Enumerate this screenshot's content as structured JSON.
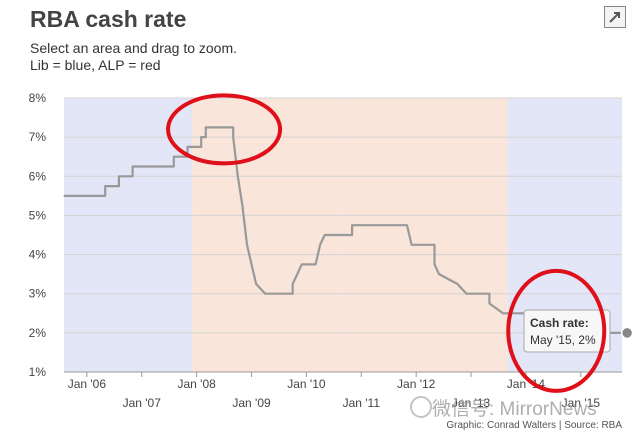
{
  "header": {
    "title": "RBA cash rate",
    "subtitle1": "Select an area and drag to zoom.",
    "subtitle2": "Lib = blue, ALP = red"
  },
  "footer": {
    "credit": "Graphic: Conrad Walters | Source: RBA"
  },
  "watermark": {
    "text": "微信号: MirrorNews"
  },
  "colors": {
    "lib_band": "#e3e6f6",
    "alp_band": "#f9e5da",
    "line": "#999999",
    "highlight_circle": "#e0101a",
    "tooltip_border": "#aaaaaa"
  },
  "tooltip": {
    "label": "Cash rate:",
    "value": "May '15, 2%"
  },
  "chart_data": {
    "type": "line",
    "title": "RBA cash rate",
    "x_range": [
      "2005-08",
      "2015-10"
    ],
    "ylim": [
      1,
      8
    ],
    "yticks": [
      "1%",
      "2%",
      "3%",
      "4%",
      "5%",
      "6%",
      "7%",
      "8%"
    ],
    "xticks": [
      {
        "date": "2006-01",
        "label": "Jan '06"
      },
      {
        "date": "2007-01",
        "label": "Jan '07"
      },
      {
        "date": "2008-01",
        "label": "Jan '08"
      },
      {
        "date": "2009-01",
        "label": "Jan '09"
      },
      {
        "date": "2010-01",
        "label": "Jan '10"
      },
      {
        "date": "2011-01",
        "label": "Jan '11"
      },
      {
        "date": "2012-01",
        "label": "Jan '12"
      },
      {
        "date": "2013-01",
        "label": "Jan '13"
      },
      {
        "date": "2014-01",
        "label": "Jan '14"
      },
      {
        "date": "2015-01",
        "label": "Jan '15"
      }
    ],
    "grid": true,
    "bands": [
      {
        "party": "Lib",
        "start": "2005-08",
        "end": "2007-12"
      },
      {
        "party": "ALP",
        "start": "2007-12",
        "end": "2010-08"
      },
      {
        "party": "ALP",
        "start": "2010-08",
        "end": "2013-09"
      },
      {
        "party": "Lib",
        "start": "2013-09",
        "end": "2015-10"
      }
    ],
    "series": [
      {
        "points": [
          [
            "2005-08",
            5.5
          ],
          [
            "2006-05",
            5.5
          ],
          [
            "2006-05",
            5.75
          ],
          [
            "2006-08",
            5.75
          ],
          [
            "2006-08",
            6.0
          ],
          [
            "2006-11",
            6.0
          ],
          [
            "2006-11",
            6.25
          ],
          [
            "2007-08",
            6.25
          ],
          [
            "2007-08",
            6.5
          ],
          [
            "2007-11",
            6.5
          ],
          [
            "2007-11",
            6.75
          ],
          [
            "2008-02",
            6.75
          ],
          [
            "2008-02",
            7.0
          ],
          [
            "2008-03",
            7.0
          ],
          [
            "2008-03",
            7.25
          ],
          [
            "2008-09",
            7.25
          ],
          [
            "2008-09",
            7.0
          ],
          [
            "2008-10",
            6.0
          ],
          [
            "2008-11",
            5.25
          ],
          [
            "2008-12",
            4.25
          ],
          [
            "2009-02",
            3.25
          ],
          [
            "2009-04",
            3.0
          ],
          [
            "2009-10",
            3.0
          ],
          [
            "2009-10",
            3.25
          ],
          [
            "2009-11",
            3.5
          ],
          [
            "2009-12",
            3.75
          ],
          [
            "2010-03",
            3.75
          ],
          [
            "2010-04",
            4.25
          ],
          [
            "2010-05",
            4.5
          ],
          [
            "2010-11",
            4.5
          ],
          [
            "2010-11",
            4.75
          ],
          [
            "2011-11",
            4.75
          ],
          [
            "2011-12",
            4.25
          ],
          [
            "2012-05",
            4.25
          ],
          [
            "2012-05",
            3.75
          ],
          [
            "2012-06",
            3.5
          ],
          [
            "2012-10",
            3.25
          ],
          [
            "2012-12",
            3.0
          ],
          [
            "2013-05",
            3.0
          ],
          [
            "2013-05",
            2.75
          ],
          [
            "2013-08",
            2.5
          ],
          [
            "2015-02",
            2.5
          ],
          [
            "2015-02",
            2.25
          ],
          [
            "2015-05",
            2.0
          ],
          [
            "2015-10",
            2.0
          ]
        ]
      }
    ],
    "highlight_point": {
      "date": "2015-05",
      "value": 2.0
    },
    "annotations": [
      {
        "type": "circle",
        "center": {
          "date": "2008-07",
          "value": 7.2
        }
      },
      {
        "type": "circle",
        "center": {
          "date": "2014-05",
          "value": 2.05
        }
      }
    ]
  }
}
